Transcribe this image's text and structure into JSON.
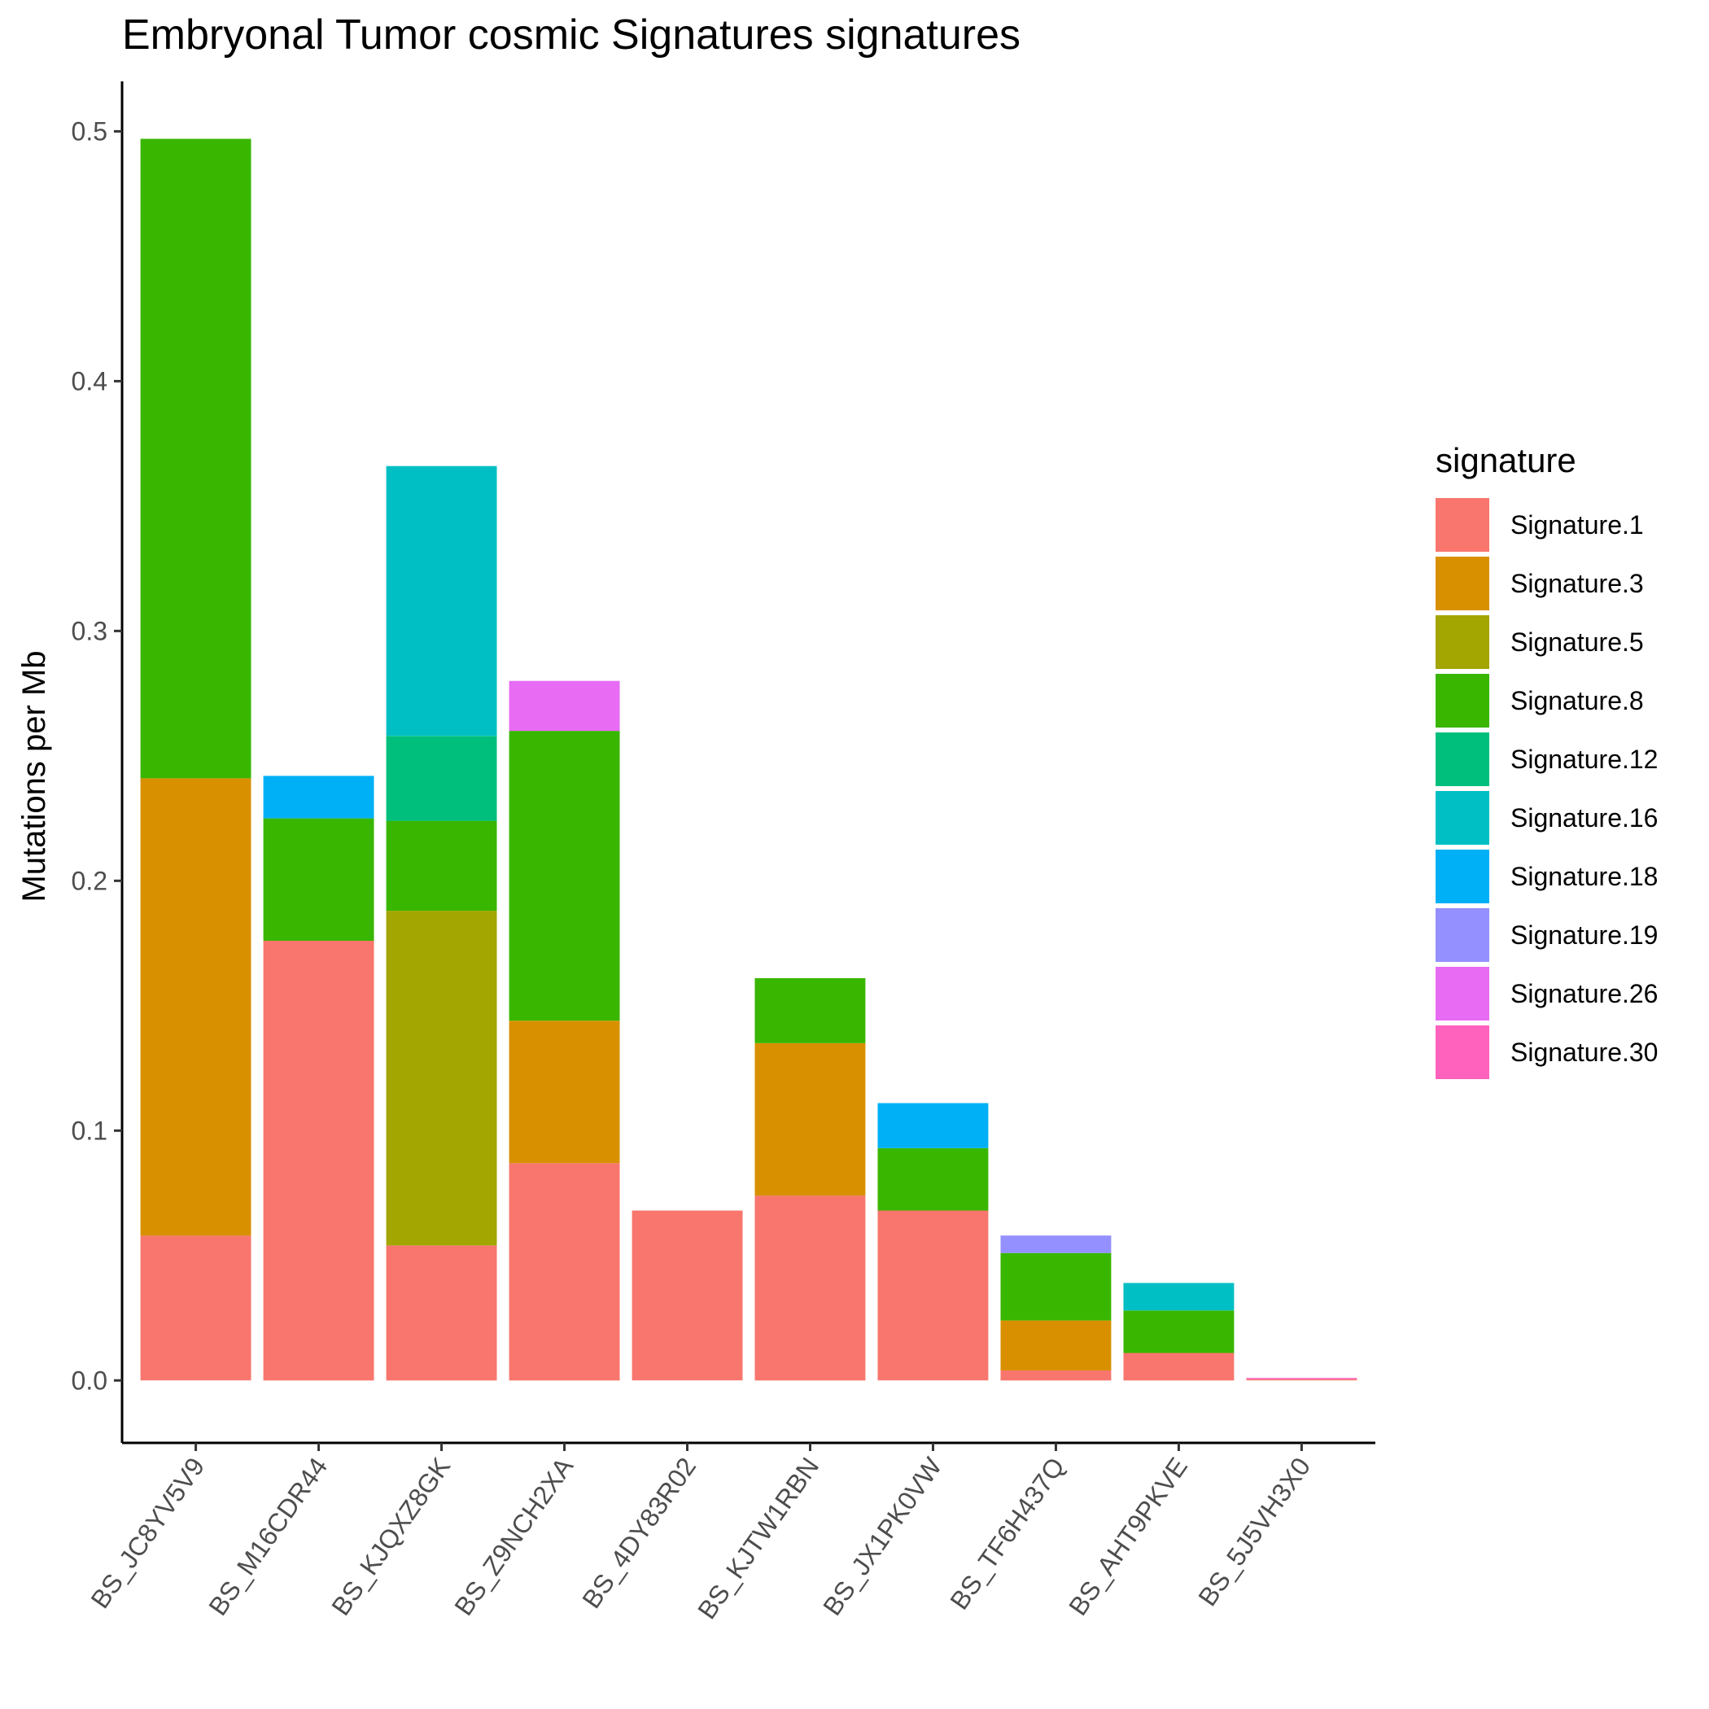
{
  "chart_data": {
    "type": "bar",
    "stacked": true,
    "title": "Embryonal Tumor cosmic Signatures signatures",
    "xlabel": "",
    "ylabel": "Mutations per Mb",
    "ylim": [
      -0.025,
      0.52
    ],
    "yticks": [
      0.0,
      0.1,
      0.2,
      0.3,
      0.4,
      0.5
    ],
    "ytick_labels": [
      "0.0",
      "0.1",
      "0.2",
      "0.3",
      "0.4",
      "0.5"
    ],
    "grid": false,
    "legend_title": "signature",
    "legend_position": "right",
    "categories": [
      "BS_JC8YV5V9",
      "BS_M16CDR44",
      "BS_KJQXZ8GK",
      "BS_Z9NCH2XA",
      "BS_4DY83R02",
      "BS_KJTW1RBN",
      "BS_JX1PK0VW",
      "BS_TF6H437Q",
      "BS_AHT9PKVE",
      "BS_5J5VH3X0"
    ],
    "series": [
      {
        "name": "Signature.1",
        "color": "#F8766D",
        "values": [
          0.058,
          0.176,
          0.054,
          0.087,
          0.068,
          0.074,
          0.068,
          0.004,
          0.011,
          0.0005
        ]
      },
      {
        "name": "Signature.3",
        "color": "#D89000",
        "values": [
          0.183,
          0.0,
          0.0,
          0.057,
          0.0,
          0.061,
          0.0,
          0.02,
          0.0,
          0.0
        ]
      },
      {
        "name": "Signature.5",
        "color": "#A3A500",
        "values": [
          0.0,
          0.0,
          0.134,
          0.0,
          0.0,
          0.0,
          0.0,
          0.0,
          0.0,
          0.0
        ]
      },
      {
        "name": "Signature.8",
        "color": "#39B600",
        "values": [
          0.256,
          0.049,
          0.036,
          0.116,
          0.0,
          0.026,
          0.025,
          0.027,
          0.017,
          0.0
        ]
      },
      {
        "name": "Signature.12",
        "color": "#00BF7D",
        "values": [
          0.0,
          0.0,
          0.034,
          0.0,
          0.0,
          0.0,
          0.0,
          0.0,
          0.0,
          0.0
        ]
      },
      {
        "name": "Signature.16",
        "color": "#00BFC4",
        "values": [
          0.0,
          0.0,
          0.108,
          0.0,
          0.0,
          0.0,
          0.0,
          0.0,
          0.011,
          0.0
        ]
      },
      {
        "name": "Signature.18",
        "color": "#00B0F6",
        "values": [
          0.0,
          0.017,
          0.0,
          0.0,
          0.0,
          0.0,
          0.018,
          0.0,
          0.0,
          0.0
        ]
      },
      {
        "name": "Signature.19",
        "color": "#9590FF",
        "values": [
          0.0,
          0.0,
          0.0,
          0.0,
          0.0,
          0.0,
          0.0,
          0.007,
          0.0,
          0.0
        ]
      },
      {
        "name": "Signature.26",
        "color": "#E76BF3",
        "values": [
          0.0,
          0.0,
          0.0,
          0.02,
          0.0,
          0.0,
          0.0,
          0.0,
          0.0,
          0.0
        ]
      },
      {
        "name": "Signature.30",
        "color": "#FF62BC",
        "values": [
          0.0,
          0.0,
          0.0,
          0.0,
          0.0,
          0.0,
          0.0,
          0.0,
          0.0,
          0.0005
        ]
      }
    ]
  }
}
